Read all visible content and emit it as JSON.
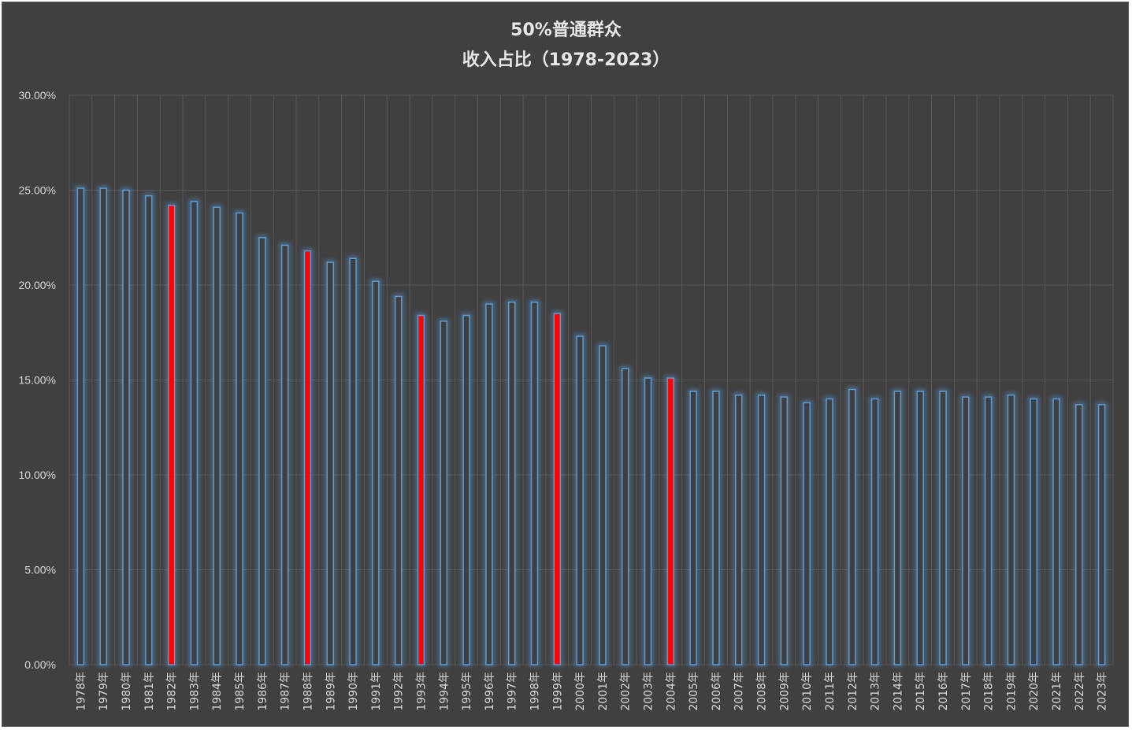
{
  "chart_data": {
    "type": "bar",
    "title": "50%普通群众",
    "subtitle": "收入占比（1978-2023）",
    "xlabel": "",
    "ylabel": "",
    "ylim": [
      0,
      30
    ],
    "yticks": [
      "0.00%",
      "5.00%",
      "10.00%",
      "15.00%",
      "20.00%",
      "25.00%",
      "30.00%"
    ],
    "grid": true,
    "legend": "none",
    "colors": {
      "normal": "#5b9bd5",
      "highlight": "#ff0000",
      "background": "#404040",
      "grid": "#595959",
      "text": "#d9d9d9"
    },
    "categories": [
      "1978年",
      "1979年",
      "1980年",
      "1981年",
      "1982年",
      "1983年",
      "1984年",
      "1985年",
      "1986年",
      "1987年",
      "1988年",
      "1989年",
      "1990年",
      "1991年",
      "1992年",
      "1993年",
      "1994年",
      "1995年",
      "1996年",
      "1997年",
      "1998年",
      "1999年",
      "2000年",
      "2001年",
      "2002年",
      "2003年",
      "2004年",
      "2005年",
      "2006年",
      "2007年",
      "2008年",
      "2009年",
      "2010年",
      "2011年",
      "2012年",
      "2013年",
      "2014年",
      "2015年",
      "2016年",
      "2017年",
      "2018年",
      "2019年",
      "2020年",
      "2021年",
      "2022年",
      "2023年"
    ],
    "values": [
      25.1,
      25.1,
      25.0,
      24.7,
      24.2,
      24.4,
      24.1,
      23.8,
      22.5,
      22.1,
      21.8,
      21.2,
      21.4,
      20.2,
      19.4,
      18.4,
      18.1,
      18.4,
      19.0,
      19.1,
      19.1,
      18.5,
      17.3,
      16.8,
      15.6,
      15.1,
      15.1,
      14.4,
      14.4,
      14.2,
      14.2,
      14.1,
      13.8,
      14.0,
      14.5,
      14.0,
      14.4,
      14.4,
      14.4,
      14.1,
      14.1,
      14.2,
      14.0,
      14.0,
      13.7,
      13.7
    ],
    "highlighted": [
      "1982年",
      "1988年",
      "1993年",
      "1999年",
      "2004年"
    ]
  }
}
